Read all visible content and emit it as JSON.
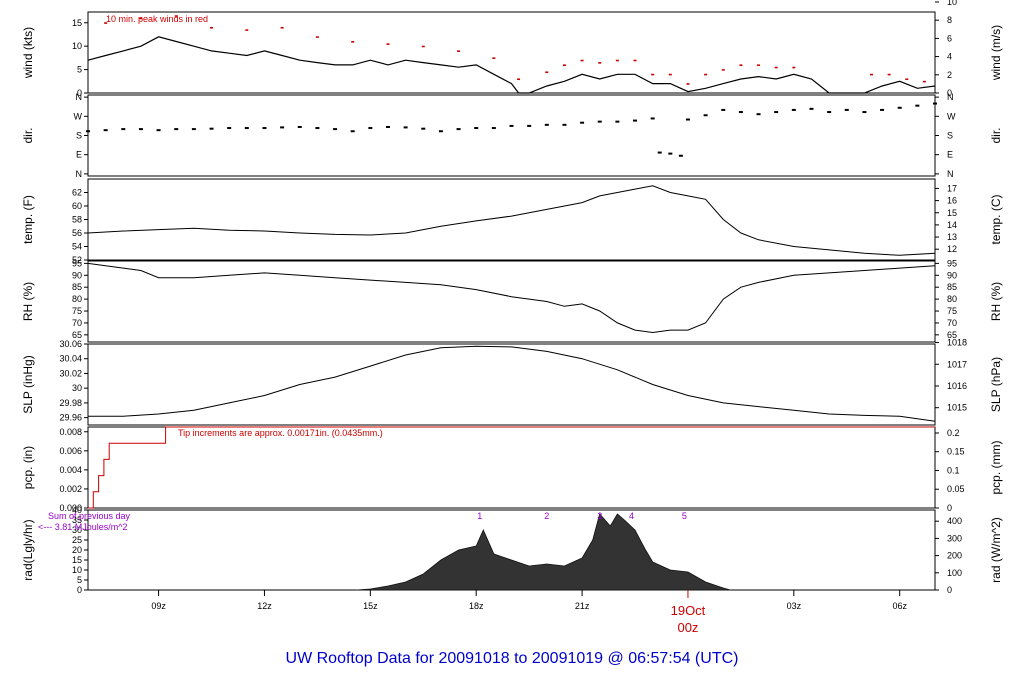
{
  "footer": {
    "title": "UW Rooftop Data for 20091018  to  20091019 @ 06:57:54  (UTC)",
    "date_label_line1": "19Oct",
    "date_label_line2": "00z"
  },
  "time_axis": {
    "ticks": [
      {
        "hour": 9,
        "label": "09z"
      },
      {
        "hour": 12,
        "label": "12z"
      },
      {
        "hour": 15,
        "label": "15z"
      },
      {
        "hour": 18,
        "label": "18z"
      },
      {
        "hour": 21,
        "label": "21z"
      },
      {
        "hour": 27,
        "label": "03z"
      },
      {
        "hour": 30,
        "label": "06z"
      }
    ],
    "start_hour": 7.0,
    "end_hour": 31.0
  },
  "colors": {
    "axis": "#000000",
    "peak": "#cc0000",
    "precip": "#cc0000",
    "note": "#9900cc",
    "title": "#0000cc",
    "date": "#cc0000"
  },
  "chart_data": [
    {
      "type": "line",
      "ylabel": "wind (kts)",
      "ylabel_right": "wind (m/s)",
      "ylim": [
        0,
        17.3
      ],
      "yticks": [
        0,
        5,
        10,
        15
      ],
      "right_ticks": [
        "0",
        "2",
        "4",
        "6",
        "8",
        "10"
      ],
      "right_tick_values": [
        0,
        3.89,
        7.78,
        11.66,
        15.55,
        19.44
      ],
      "annotation": "10 min. peak winds in red",
      "series": [
        {
          "role": "mean",
          "x": [
            7,
            7.5,
            8,
            8.5,
            9,
            9.5,
            10,
            10.5,
            11,
            11.5,
            12,
            12.5,
            13,
            13.5,
            14,
            14.5,
            15,
            15.5,
            16,
            16.5,
            17,
            17.5,
            18,
            18.5,
            19,
            19.2,
            19.5,
            20,
            20.5,
            21,
            21.5,
            22,
            22.5,
            23,
            23.5,
            24,
            24.5,
            25,
            25.5,
            26,
            26.5,
            27,
            27.5,
            28,
            28.5,
            29,
            29.5,
            30,
            30.5,
            31
          ],
          "y": [
            7,
            8,
            9,
            10,
            12,
            11,
            10,
            9,
            8.5,
            8,
            9,
            8,
            7,
            6.5,
            6,
            6,
            7,
            6,
            7,
            6.5,
            6,
            5.5,
            6,
            4,
            2,
            0,
            0,
            1.5,
            2.5,
            4,
            3,
            4,
            4,
            2,
            2,
            0.3,
            1,
            2,
            3,
            3.5,
            3,
            4,
            3,
            0,
            0,
            0,
            1.5,
            2.5,
            1,
            1.5
          ]
        },
        {
          "role": "peak",
          "x": [
            7.5,
            8.5,
            9.5,
            10.5,
            11.5,
            12.5,
            13.5,
            14.5,
            15.5,
            16.5,
            17.5,
            18.5,
            19.2,
            20,
            20.5,
            21,
            21.5,
            22,
            22.5,
            23,
            23.5,
            24,
            24.5,
            25,
            25.5,
            26,
            26.5,
            27,
            29.2,
            29.7,
            30.2,
            30.7
          ],
          "y": [
            15,
            16,
            16.5,
            14,
            13.5,
            14,
            12,
            11,
            10.5,
            10,
            9,
            7.5,
            3,
            4.5,
            6,
            7,
            6.5,
            7,
            7,
            4,
            4,
            2,
            4,
            5,
            6,
            6,
            5.5,
            5.5,
            4,
            4,
            3,
            2.5
          ]
        }
      ]
    },
    {
      "type": "scatter",
      "ylabel": "dir.",
      "ylabel_right": "dir.",
      "ylim": [
        -10,
        370
      ],
      "yticks": [
        0,
        90,
        180,
        270,
        360
      ],
      "tick_labels": [
        "N",
        "E",
        "S",
        "W",
        "N"
      ],
      "x": [
        7,
        7.5,
        8,
        8.5,
        9,
        9.5,
        10,
        10.5,
        11,
        11.5,
        12,
        12.5,
        13,
        13.5,
        14,
        14.5,
        15,
        15.5,
        16,
        16.5,
        17,
        17.5,
        18,
        18.5,
        19,
        19.5,
        20,
        20.5,
        21,
        21.5,
        22,
        22.5,
        23,
        23.2,
        23.5,
        23.8,
        24,
        24.5,
        25,
        25.5,
        26,
        26.5,
        27,
        27.5,
        28,
        28.5,
        29,
        29.5,
        30,
        30.5,
        31
      ],
      "y": [
        200,
        205,
        210,
        210,
        205,
        210,
        210,
        212,
        215,
        215,
        215,
        218,
        220,
        215,
        210,
        200,
        215,
        220,
        218,
        212,
        200,
        210,
        215,
        215,
        225,
        225,
        230,
        230,
        240,
        245,
        245,
        250,
        260,
        100,
        95,
        85,
        255,
        275,
        300,
        290,
        280,
        290,
        300,
        305,
        290,
        300,
        290,
        300,
        310,
        320,
        330
      ]
    },
    {
      "type": "line",
      "ylabel": "temp. (F)",
      "ylabel_right": "temp. (C)",
      "ylim": [
        52,
        64
      ],
      "yticks": [
        52,
        54,
        56,
        58,
        60,
        62
      ],
      "right_ticks": [
        "12",
        "13",
        "14",
        "15",
        "16",
        "17"
      ],
      "right_tick_values": [
        53.6,
        55.4,
        57.2,
        59.0,
        60.8,
        62.6
      ],
      "x": [
        7,
        8,
        9,
        10,
        11,
        12,
        13,
        14,
        15,
        16,
        17,
        18,
        19,
        20,
        21,
        21.5,
        22,
        22.5,
        23,
        23.5,
        24,
        24.5,
        25,
        25.5,
        26,
        27,
        28,
        29,
        30,
        31
      ],
      "y": [
        56.0,
        56.3,
        56.5,
        56.7,
        56.4,
        56.3,
        56.0,
        55.8,
        55.7,
        56.0,
        57.0,
        57.8,
        58.5,
        59.5,
        60.5,
        61.5,
        62.0,
        62.5,
        63.0,
        62.0,
        61.5,
        61.0,
        58.0,
        56.0,
        55.0,
        54.0,
        53.5,
        53.0,
        52.7,
        53.0
      ]
    },
    {
      "type": "line",
      "ylabel": "RH (%)",
      "ylabel_right": "RH (%)",
      "ylim": [
        62,
        96
      ],
      "yticks": [
        65,
        70,
        75,
        80,
        85,
        90,
        95
      ],
      "right_ticks": [
        "65",
        "70",
        "75",
        "80",
        "85",
        "90",
        "95"
      ],
      "right_tick_values": [
        65,
        70,
        75,
        80,
        85,
        90,
        95
      ],
      "x": [
        7,
        7.5,
        8,
        8.5,
        9,
        10,
        11,
        12,
        13,
        14,
        15,
        16,
        17,
        18,
        19,
        20,
        20.5,
        21,
        21.5,
        22,
        22.5,
        23,
        23.5,
        24,
        24.5,
        25,
        25.5,
        26,
        27,
        28,
        29,
        30,
        31
      ],
      "y": [
        95,
        94,
        93,
        92,
        89,
        89,
        90,
        91,
        90,
        89,
        88,
        87,
        86,
        84,
        81,
        79,
        77,
        78,
        75,
        70,
        67,
        66,
        67,
        67,
        70,
        80,
        85,
        87,
        90,
        91,
        92,
        93,
        94
      ]
    },
    {
      "type": "line",
      "ylabel": "SLP (inHg)",
      "ylabel_right": "SLP (hPa)",
      "ylim": [
        29.95,
        30.06
      ],
      "yticks": [
        29.96,
        29.98,
        30.0,
        30.02,
        30.04,
        30.06
      ],
      "right_ticks": [
        "1015",
        "1016",
        "1017",
        "1018"
      ],
      "right_tick_values": [
        29.9735,
        30.003,
        30.0325,
        30.062
      ],
      "x": [
        7,
        8,
        9,
        10,
        11,
        12,
        13,
        14,
        15,
        16,
        17,
        18,
        19,
        20,
        21,
        22,
        23,
        24,
        25,
        26,
        27,
        28,
        29,
        30,
        31
      ],
      "y": [
        29.962,
        29.962,
        29.965,
        29.97,
        29.98,
        29.99,
        30.005,
        30.015,
        30.03,
        30.045,
        30.055,
        30.057,
        30.056,
        30.05,
        30.04,
        30.025,
        30.005,
        29.99,
        29.98,
        29.975,
        29.97,
        29.965,
        29.963,
        29.962,
        29.955
      ]
    },
    {
      "type": "line",
      "ylabel": "pcp. (in)",
      "ylabel_right": "pcp. (mm)",
      "ylim": [
        0,
        0.0085
      ],
      "yticks": [
        0,
        0.002,
        0.004,
        0.006,
        0.008
      ],
      "tick_labels": [
        "0.000",
        "0.002",
        "0.004",
        "0.006",
        "0.008"
      ],
      "right_ticks": [
        "0",
        "0.05",
        "0.1",
        "0.15",
        "0.2"
      ],
      "right_tick_values": [
        0,
        0.00197,
        0.00394,
        0.00591,
        0.00787
      ],
      "annotation": "Tip increments are approx. 0.00171in. (0.0435mm.)",
      "x": [
        7.0,
        7.15,
        7.3,
        7.45,
        7.6,
        9.1,
        9.2,
        31.0
      ],
      "y": [
        0,
        0.0017,
        0.0034,
        0.0051,
        0.0068,
        0.0068,
        0.0085,
        0.0085
      ]
    },
    {
      "type": "area",
      "ylabel": "rad(Lgly/hr)",
      "ylabel_right": "rad (W/m^2)",
      "ylim": [
        0,
        40
      ],
      "yticks": [
        0,
        5,
        10,
        15,
        20,
        25,
        30,
        35,
        40
      ],
      "right_ticks": [
        "0",
        "100",
        "200",
        "300",
        "400"
      ],
      "right_tick_values": [
        0,
        8.6,
        17.2,
        25.8,
        34.4
      ],
      "annotation_line1": "Sum of previous day",
      "annotation_line2": "<--- 3.81 MJoules/m^2",
      "markers": [
        {
          "hour": 18.1,
          "label": "1"
        },
        {
          "hour": 20.0,
          "label": "2"
        },
        {
          "hour": 21.5,
          "label": "3"
        },
        {
          "hour": 22.4,
          "label": "4"
        },
        {
          "hour": 23.9,
          "label": "5"
        }
      ],
      "x": [
        14.6,
        15,
        15.5,
        16,
        16.5,
        17,
        17.5,
        18,
        18.2,
        18.5,
        19,
        19.5,
        20,
        20.5,
        21,
        21.3,
        21.5,
        21.8,
        22,
        22.2,
        22.5,
        22.8,
        23,
        23.5,
        24,
        24.5,
        25,
        25.2
      ],
      "y": [
        0,
        0.5,
        2,
        4,
        8,
        15,
        20,
        22,
        30,
        18,
        15,
        12,
        13,
        12,
        16,
        25,
        38,
        32,
        38,
        35,
        30,
        20,
        14,
        10,
        9,
        4,
        1,
        0
      ]
    }
  ]
}
